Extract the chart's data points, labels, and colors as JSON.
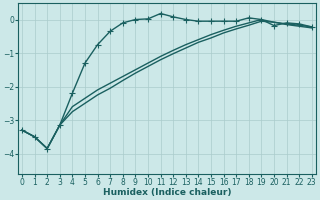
{
  "xlabel": "Humidex (Indice chaleur)",
  "bg_color": "#cce8e8",
  "grid_color": "#aacccc",
  "line_color": "#1a6060",
  "xlim": [
    -0.3,
    23.3
  ],
  "ylim": [
    -4.6,
    0.5
  ],
  "yticks": [
    0,
    -1,
    -2,
    -3,
    -4
  ],
  "xticks": [
    0,
    1,
    2,
    3,
    4,
    5,
    6,
    7,
    8,
    9,
    10,
    11,
    12,
    13,
    14,
    15,
    16,
    17,
    18,
    19,
    20,
    21,
    22,
    23
  ],
  "line1_x": [
    0,
    1,
    2,
    3,
    4,
    5,
    6,
    7,
    8,
    9,
    10,
    11,
    12,
    13,
    14,
    15,
    16,
    17,
    18,
    19,
    20,
    21,
    22,
    23
  ],
  "line1_y": [
    -3.3,
    -3.5,
    -3.85,
    -3.15,
    -2.2,
    -1.3,
    -0.75,
    -0.35,
    -0.1,
    0.0,
    0.02,
    0.18,
    0.08,
    0.0,
    -0.05,
    -0.05,
    -0.05,
    -0.05,
    0.05,
    0.0,
    -0.18,
    -0.1,
    -0.13,
    -0.22
  ],
  "line2_x": [
    0,
    1,
    2,
    3,
    4,
    5,
    6,
    7,
    8,
    9,
    10,
    11,
    12,
    13,
    14,
    15,
    16,
    17,
    18,
    19,
    20,
    21,
    22,
    23
  ],
  "line2_y": [
    -3.3,
    -3.5,
    -3.85,
    -3.15,
    -2.6,
    -2.35,
    -2.1,
    -1.9,
    -1.7,
    -1.5,
    -1.3,
    -1.1,
    -0.92,
    -0.75,
    -0.6,
    -0.45,
    -0.32,
    -0.2,
    -0.1,
    0.0,
    -0.08,
    -0.13,
    -0.17,
    -0.22
  ],
  "line3_x": [
    0,
    1,
    2,
    3,
    4,
    5,
    6,
    7,
    8,
    9,
    10,
    11,
    12,
    13,
    14,
    15,
    16,
    17,
    18,
    19,
    20,
    21,
    22,
    23
  ],
  "line3_y": [
    -3.3,
    -3.5,
    -3.85,
    -3.15,
    -2.75,
    -2.5,
    -2.25,
    -2.05,
    -1.82,
    -1.6,
    -1.4,
    -1.2,
    -1.02,
    -0.85,
    -0.68,
    -0.55,
    -0.4,
    -0.28,
    -0.17,
    -0.05,
    -0.08,
    -0.15,
    -0.2,
    -0.25
  ],
  "markersize": 2.5,
  "linewidth": 1.0
}
